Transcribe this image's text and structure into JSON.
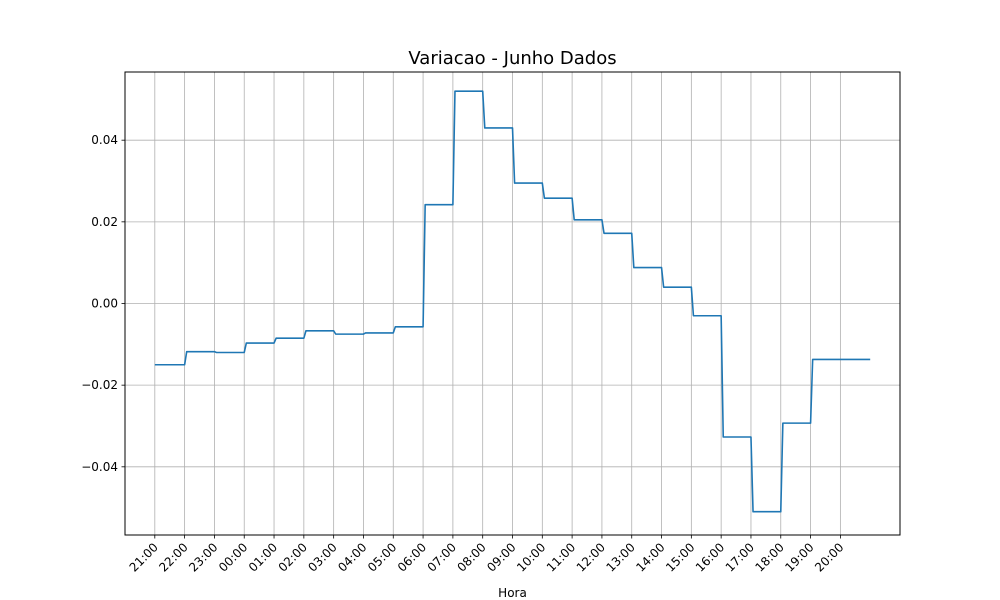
{
  "chart_data": {
    "type": "line",
    "title": "Variacao - Junho Dados",
    "xlabel": "Hora",
    "ylabel": "",
    "x_ticks": [
      "21:00",
      "22:00",
      "23:00",
      "00:00",
      "01:00",
      "02:00",
      "03:00",
      "04:00",
      "05:00",
      "06:00",
      "07:00",
      "08:00",
      "09:00",
      "10:00",
      "11:00",
      "12:00",
      "13:00",
      "14:00",
      "15:00",
      "16:00",
      "17:00",
      "18:00",
      "19:00",
      "20:00"
    ],
    "y_ticks": [
      "−0.04",
      "−0.02",
      "0.00",
      "0.02",
      "0.04"
    ],
    "y_tick_values": [
      -0.04,
      -0.02,
      0.0,
      0.02,
      0.04
    ],
    "ylim": [
      -0.0567,
      0.0567
    ],
    "xlim": [
      -1,
      25
    ],
    "grid": true,
    "series": [
      {
        "color": "#1f77b4",
        "style": "step",
        "hourly_values": [
          -0.015,
          -0.0118,
          -0.012,
          -0.0097,
          -0.0085,
          -0.0067,
          -0.0075,
          -0.0072,
          -0.0057,
          0.0242,
          0.052,
          0.043,
          0.0295,
          0.0258,
          0.0205,
          0.0172,
          0.0088,
          0.004,
          -0.003,
          -0.0327,
          -0.051,
          -0.0293,
          -0.0137
        ]
      }
    ],
    "x_end": 24
  }
}
